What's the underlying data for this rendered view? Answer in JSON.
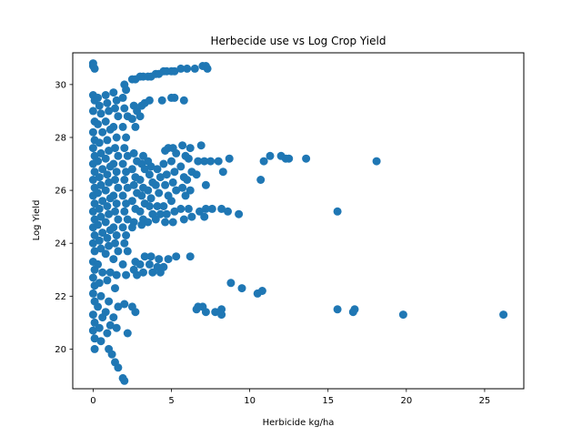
{
  "chart_data": {
    "type": "scatter",
    "title": "Herbecide use vs Log Crop Yield",
    "xlabel": "Herbicide kg/ha",
    "ylabel": "Log Yield",
    "xlim": [
      -1.3,
      27.5
    ],
    "ylim": [
      18.5,
      31.2
    ],
    "xticks": [
      0,
      5,
      10,
      15,
      20,
      25
    ],
    "yticks": [
      20,
      22,
      24,
      26,
      28,
      30
    ],
    "grid": false,
    "color": "#1f77b4",
    "series": [
      {
        "points": [
          [
            0.0,
            30.8
          ],
          [
            0.0,
            30.7
          ],
          [
            0.1,
            30.6
          ],
          [
            0.0,
            29.6
          ],
          [
            0.1,
            29.4
          ],
          [
            0.0,
            29.0
          ],
          [
            0.1,
            28.6
          ],
          [
            0.0,
            28.2
          ],
          [
            0.1,
            27.9
          ],
          [
            0.0,
            27.6
          ],
          [
            0.1,
            27.3
          ],
          [
            0.0,
            27.0
          ],
          [
            0.1,
            26.7
          ],
          [
            0.0,
            26.4
          ],
          [
            0.1,
            26.1
          ],
          [
            0.0,
            25.8
          ],
          [
            0.1,
            25.5
          ],
          [
            0.0,
            25.2
          ],
          [
            0.1,
            24.9
          ],
          [
            0.0,
            24.6
          ],
          [
            0.1,
            24.3
          ],
          [
            0.0,
            24.0
          ],
          [
            0.1,
            23.7
          ],
          [
            0.0,
            23.3
          ],
          [
            0.1,
            23.0
          ],
          [
            0.0,
            22.7
          ],
          [
            0.1,
            22.4
          ],
          [
            0.0,
            22.1
          ],
          [
            0.1,
            21.8
          ],
          [
            0.0,
            21.3
          ],
          [
            0.1,
            21.0
          ],
          [
            0.0,
            20.7
          ],
          [
            0.1,
            20.4
          ],
          [
            0.1,
            20.0
          ],
          [
            0.3,
            29.5
          ],
          [
            0.4,
            29.2
          ],
          [
            0.5,
            28.9
          ],
          [
            0.3,
            28.5
          ],
          [
            0.6,
            28.2
          ],
          [
            0.4,
            27.8
          ],
          [
            0.5,
            27.4
          ],
          [
            0.3,
            27.1
          ],
          [
            0.6,
            26.8
          ],
          [
            0.4,
            26.5
          ],
          [
            0.5,
            26.2
          ],
          [
            0.3,
            25.9
          ],
          [
            0.6,
            25.6
          ],
          [
            0.4,
            25.3
          ],
          [
            0.5,
            25.0
          ],
          [
            0.3,
            24.7
          ],
          [
            0.6,
            24.4
          ],
          [
            0.4,
            24.1
          ],
          [
            0.5,
            23.8
          ],
          [
            0.3,
            23.2
          ],
          [
            0.6,
            22.9
          ],
          [
            0.4,
            22.5
          ],
          [
            0.5,
            22.0
          ],
          [
            0.3,
            21.6
          ],
          [
            0.6,
            21.2
          ],
          [
            0.4,
            20.8
          ],
          [
            0.5,
            20.3
          ],
          [
            0.8,
            29.6
          ],
          [
            0.9,
            29.3
          ],
          [
            1.0,
            29.0
          ],
          [
            0.8,
            28.6
          ],
          [
            1.1,
            28.3
          ],
          [
            0.9,
            27.9
          ],
          [
            1.0,
            27.5
          ],
          [
            0.8,
            27.2
          ],
          [
            1.1,
            26.9
          ],
          [
            0.9,
            26.6
          ],
          [
            1.0,
            26.3
          ],
          [
            0.8,
            26.0
          ],
          [
            1.1,
            25.7
          ],
          [
            0.9,
            25.4
          ],
          [
            1.0,
            25.1
          ],
          [
            0.8,
            24.8
          ],
          [
            1.1,
            24.5
          ],
          [
            0.9,
            24.2
          ],
          [
            1.0,
            23.9
          ],
          [
            0.8,
            23.6
          ],
          [
            1.1,
            22.9
          ],
          [
            0.9,
            22.6
          ],
          [
            1.0,
            21.8
          ],
          [
            0.8,
            21.4
          ],
          [
            1.1,
            20.9
          ],
          [
            0.9,
            20.6
          ],
          [
            1.0,
            20.0
          ],
          [
            1.2,
            19.8
          ],
          [
            1.4,
            19.5
          ],
          [
            1.6,
            19.3
          ],
          [
            1.3,
            29.7
          ],
          [
            1.5,
            29.4
          ],
          [
            1.4,
            29.1
          ],
          [
            1.6,
            28.8
          ],
          [
            1.3,
            28.4
          ],
          [
            1.5,
            28.0
          ],
          [
            1.4,
            27.6
          ],
          [
            1.6,
            27.3
          ],
          [
            1.3,
            27.0
          ],
          [
            1.5,
            26.7
          ],
          [
            1.4,
            26.4
          ],
          [
            1.6,
            26.1
          ],
          [
            1.3,
            25.8
          ],
          [
            1.5,
            25.5
          ],
          [
            1.4,
            25.2
          ],
          [
            1.6,
            24.9
          ],
          [
            1.3,
            24.6
          ],
          [
            1.5,
            24.3
          ],
          [
            1.4,
            24.0
          ],
          [
            1.6,
            23.7
          ],
          [
            1.3,
            23.4
          ],
          [
            1.5,
            22.8
          ],
          [
            1.4,
            22.3
          ],
          [
            1.6,
            21.6
          ],
          [
            1.3,
            21.2
          ],
          [
            1.5,
            20.8
          ],
          [
            2.0,
            30.0
          ],
          [
            2.1,
            29.8
          ],
          [
            1.9,
            29.5
          ],
          [
            2.0,
            29.1
          ],
          [
            2.2,
            28.8
          ],
          [
            1.9,
            28.4
          ],
          [
            2.1,
            28.0
          ],
          [
            2.0,
            27.6
          ],
          [
            2.2,
            27.3
          ],
          [
            1.9,
            27.0
          ],
          [
            2.1,
            26.7
          ],
          [
            2.0,
            26.4
          ],
          [
            2.2,
            26.1
          ],
          [
            1.9,
            25.8
          ],
          [
            2.1,
            25.5
          ],
          [
            2.0,
            25.2
          ],
          [
            2.2,
            24.9
          ],
          [
            1.9,
            24.6
          ],
          [
            2.1,
            24.3
          ],
          [
            2.0,
            24.0
          ],
          [
            2.2,
            23.7
          ],
          [
            1.9,
            23.2
          ],
          [
            2.1,
            22.8
          ],
          [
            2.0,
            21.7
          ],
          [
            2.2,
            20.6
          ],
          [
            1.9,
            18.9
          ],
          [
            2.0,
            18.8
          ],
          [
            2.5,
            30.2
          ],
          [
            2.7,
            30.2
          ],
          [
            2.6,
            29.2
          ],
          [
            2.8,
            29.0
          ],
          [
            2.5,
            28.7
          ],
          [
            2.7,
            28.4
          ],
          [
            2.6,
            27.4
          ],
          [
            2.8,
            27.1
          ],
          [
            2.5,
            26.8
          ],
          [
            2.7,
            26.5
          ],
          [
            2.6,
            26.2
          ],
          [
            2.8,
            25.9
          ],
          [
            2.5,
            25.6
          ],
          [
            2.7,
            25.3
          ],
          [
            2.6,
            24.8
          ],
          [
            2.5,
            24.6
          ],
          [
            2.7,
            23.3
          ],
          [
            2.6,
            23.0
          ],
          [
            2.8,
            22.8
          ],
          [
            2.5,
            21.6
          ],
          [
            2.7,
            21.4
          ],
          [
            3.0,
            30.3
          ],
          [
            3.2,
            30.3
          ],
          [
            3.1,
            29.2
          ],
          [
            3.3,
            29.3
          ],
          [
            3.0,
            28.8
          ],
          [
            3.2,
            27.3
          ],
          [
            3.1,
            27.0
          ],
          [
            3.3,
            26.8
          ],
          [
            3.0,
            26.4
          ],
          [
            3.2,
            26.1
          ],
          [
            3.1,
            25.8
          ],
          [
            3.3,
            25.5
          ],
          [
            3.0,
            25.2
          ],
          [
            3.2,
            24.9
          ],
          [
            3.1,
            24.7
          ],
          [
            3.3,
            23.5
          ],
          [
            3.0,
            23.2
          ],
          [
            3.2,
            22.9
          ],
          [
            3.5,
            30.3
          ],
          [
            3.7,
            30.3
          ],
          [
            3.6,
            29.4
          ],
          [
            3.5,
            27.1
          ],
          [
            3.7,
            26.9
          ],
          [
            3.6,
            26.6
          ],
          [
            3.8,
            26.3
          ],
          [
            3.5,
            26.0
          ],
          [
            3.7,
            25.7
          ],
          [
            3.6,
            25.4
          ],
          [
            3.8,
            25.1
          ],
          [
            3.5,
            24.8
          ],
          [
            3.7,
            23.5
          ],
          [
            3.6,
            23.2
          ],
          [
            3.8,
            22.9
          ],
          [
            4.0,
            30.4
          ],
          [
            4.2,
            30.4
          ],
          [
            4.1,
            26.8
          ],
          [
            4.3,
            26.5
          ],
          [
            4.0,
            26.2
          ],
          [
            4.2,
            25.9
          ],
          [
            4.1,
            25.4
          ],
          [
            4.3,
            25.1
          ],
          [
            4.0,
            24.9
          ],
          [
            4.2,
            23.4
          ],
          [
            4.1,
            23.1
          ],
          [
            4.3,
            22.9
          ],
          [
            4.5,
            30.5
          ],
          [
            4.7,
            30.5
          ],
          [
            4.4,
            29.4
          ],
          [
            4.6,
            27.5
          ],
          [
            4.8,
            27.6
          ],
          [
            4.5,
            27.0
          ],
          [
            4.7,
            26.6
          ],
          [
            4.6,
            26.2
          ],
          [
            4.8,
            25.8
          ],
          [
            4.5,
            25.4
          ],
          [
            4.7,
            25.1
          ],
          [
            4.6,
            24.8
          ],
          [
            4.8,
            23.4
          ],
          [
            4.5,
            23.1
          ],
          [
            5.0,
            30.5
          ],
          [
            5.2,
            30.5
          ],
          [
            5.0,
            29.5
          ],
          [
            5.2,
            29.5
          ],
          [
            5.1,
            27.6
          ],
          [
            5.3,
            27.4
          ],
          [
            5.0,
            27.1
          ],
          [
            5.2,
            26.7
          ],
          [
            5.1,
            26.3
          ],
          [
            5.3,
            26.0
          ],
          [
            5.0,
            25.6
          ],
          [
            5.2,
            25.2
          ],
          [
            5.1,
            24.8
          ],
          [
            5.3,
            23.5
          ],
          [
            5.6,
            30.6
          ],
          [
            5.8,
            29.4
          ],
          [
            5.7,
            27.7
          ],
          [
            5.9,
            27.3
          ],
          [
            5.6,
            26.9
          ],
          [
            5.8,
            26.5
          ],
          [
            5.7,
            26.1
          ],
          [
            5.9,
            25.8
          ],
          [
            5.6,
            25.3
          ],
          [
            5.8,
            24.9
          ],
          [
            6.0,
            30.6
          ],
          [
            6.2,
            27.6
          ],
          [
            6.1,
            27.2
          ],
          [
            6.3,
            26.7
          ],
          [
            6.0,
            26.4
          ],
          [
            6.2,
            26.0
          ],
          [
            6.1,
            25.3
          ],
          [
            6.3,
            25.0
          ],
          [
            6.2,
            23.5
          ],
          [
            6.5,
            30.6
          ],
          [
            6.7,
            27.1
          ],
          [
            6.6,
            26.6
          ],
          [
            6.8,
            25.2
          ],
          [
            6.7,
            21.6
          ],
          [
            7.0,
            30.7
          ],
          [
            7.2,
            30.7
          ],
          [
            7.3,
            30.6
          ],
          [
            6.9,
            27.7
          ],
          [
            7.1,
            27.1
          ],
          [
            7.2,
            26.2
          ],
          [
            7.2,
            25.3
          ],
          [
            7.1,
            25.0
          ],
          [
            7.0,
            21.6
          ],
          [
            7.2,
            21.4
          ],
          [
            6.6,
            21.5
          ],
          [
            7.8,
            21.4
          ],
          [
            7.5,
            27.1
          ],
          [
            7.6,
            25.3
          ],
          [
            8.0,
            27.1
          ],
          [
            8.3,
            26.7
          ],
          [
            8.2,
            25.3
          ],
          [
            8.2,
            21.5
          ],
          [
            8.2,
            21.3
          ],
          [
            8.7,
            27.2
          ],
          [
            8.6,
            25.2
          ],
          [
            8.8,
            22.5
          ],
          [
            9.3,
            25.1
          ],
          [
            9.5,
            22.3
          ],
          [
            10.5,
            22.1
          ],
          [
            10.8,
            22.2
          ],
          [
            10.7,
            26.4
          ],
          [
            10.9,
            27.1
          ],
          [
            11.3,
            27.3
          ],
          [
            12.0,
            27.3
          ],
          [
            12.3,
            27.2
          ],
          [
            12.5,
            27.2
          ],
          [
            13.6,
            27.2
          ],
          [
            15.6,
            25.2
          ],
          [
            15.6,
            21.5
          ],
          [
            16.6,
            21.4
          ],
          [
            16.7,
            21.5
          ],
          [
            18.1,
            27.1
          ],
          [
            19.8,
            21.3
          ],
          [
            26.2,
            21.3
          ]
        ]
      }
    ]
  }
}
